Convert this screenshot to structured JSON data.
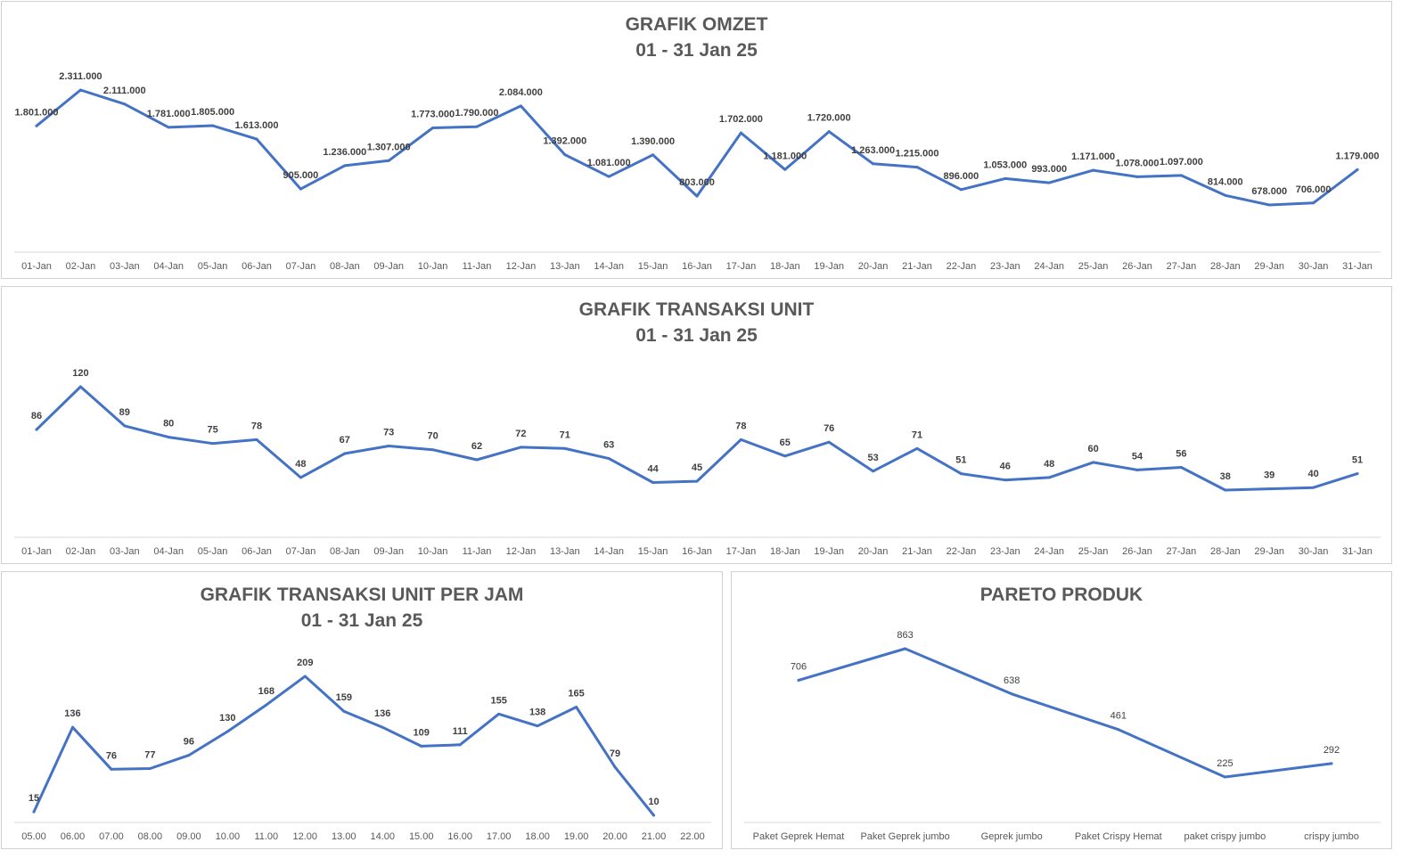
{
  "chart_data": [
    {
      "type": "line",
      "title": "GRAFIK OMZET",
      "subtitle": "01 - 31 Jan 25",
      "categories": [
        "01-Jan",
        "02-Jan",
        "03-Jan",
        "04-Jan",
        "05-Jan",
        "06-Jan",
        "07-Jan",
        "08-Jan",
        "09-Jan",
        "10-Jan",
        "11-Jan",
        "12-Jan",
        "13-Jan",
        "14-Jan",
        "15-Jan",
        "16-Jan",
        "17-Jan",
        "18-Jan",
        "19-Jan",
        "20-Jan",
        "21-Jan",
        "22-Jan",
        "23-Jan",
        "24-Jan",
        "25-Jan",
        "26-Jan",
        "27-Jan",
        "28-Jan",
        "29-Jan",
        "30-Jan",
        "31-Jan"
      ],
      "values": [
        1801000,
        2311000,
        2111000,
        1781000,
        1805000,
        1613000,
        905000,
        1236000,
        1307000,
        1773000,
        1790000,
        2084000,
        1392000,
        1081000,
        1390000,
        803000,
        1702000,
        1181000,
        1720000,
        1263000,
        1215000,
        896000,
        1053000,
        993000,
        1171000,
        1078000,
        1097000,
        814000,
        678000,
        706000,
        1179000
      ],
      "data_labels": [
        "1.801.000",
        "2.311.000",
        "2.111.000",
        "1.781.000",
        "1.805.000",
        "1.613.000",
        "905.000",
        "1.236.000",
        "1.307.000",
        "1.773.000",
        "1.790.000",
        "2.084.000",
        "1.392.000",
        "1.081.000",
        "1.390.000",
        "803.000",
        "1.702.000",
        "1.181.000",
        "1.720.000",
        "1.263.000",
        "1.215.000",
        "896.000",
        "1.053.000",
        "993.000",
        "1.171.000",
        "1.078.000",
        "1.097.000",
        "814.000",
        "678.000",
        "706.000",
        "1.179.000"
      ],
      "line_color": "#4472C4",
      "grid": false,
      "legend": "none"
    },
    {
      "type": "line",
      "title": "GRAFIK TRANSAKSI UNIT",
      "subtitle": "01 - 31 Jan 25",
      "categories": [
        "01-Jan",
        "02-Jan",
        "03-Jan",
        "04-Jan",
        "05-Jan",
        "06-Jan",
        "07-Jan",
        "08-Jan",
        "09-Jan",
        "10-Jan",
        "11-Jan",
        "12-Jan",
        "13-Jan",
        "14-Jan",
        "15-Jan",
        "16-Jan",
        "17-Jan",
        "18-Jan",
        "19-Jan",
        "20-Jan",
        "21-Jan",
        "22-Jan",
        "23-Jan",
        "24-Jan",
        "25-Jan",
        "26-Jan",
        "27-Jan",
        "28-Jan",
        "29-Jan",
        "30-Jan",
        "31-Jan"
      ],
      "values": [
        86,
        120,
        89,
        80,
        75,
        78,
        48,
        67,
        73,
        70,
        62,
        72,
        71,
        63,
        44,
        45,
        78,
        65,
        76,
        53,
        71,
        51,
        46,
        48,
        60,
        54,
        56,
        38,
        39,
        40,
        51
      ],
      "line_color": "#4472C4",
      "grid": false,
      "legend": "none"
    },
    {
      "type": "line",
      "title": "GRAFIK TRANSAKSI UNIT PER JAM",
      "subtitle": "01 - 31 Jan 25",
      "categories": [
        "05.00",
        "06.00",
        "07.00",
        "08.00",
        "09.00",
        "10.00",
        "11.00",
        "12.00",
        "13.00",
        "14.00",
        "15.00",
        "16.00",
        "17.00",
        "18.00",
        "19.00",
        "20.00",
        "21.00",
        "22.00"
      ],
      "values": [
        15,
        136,
        76,
        77,
        96,
        130,
        168,
        209,
        159,
        136,
        109,
        111,
        155,
        138,
        165,
        79,
        10,
        null
      ],
      "line_color": "#4472C4",
      "grid": false,
      "legend": "none"
    },
    {
      "type": "line",
      "title": "PARETO PRODUK",
      "subtitle": "",
      "categories": [
        "Paket Geprek Hemat",
        "Paket Geprek jumbo",
        "Geprek jumbo",
        "Paket Crispy Hemat",
        "paket crispy jumbo",
        "crispy jumbo"
      ],
      "values": [
        706,
        863,
        638,
        461,
        225,
        292
      ],
      "line_color": "#4472C4",
      "grid": false,
      "legend": "none"
    }
  ]
}
